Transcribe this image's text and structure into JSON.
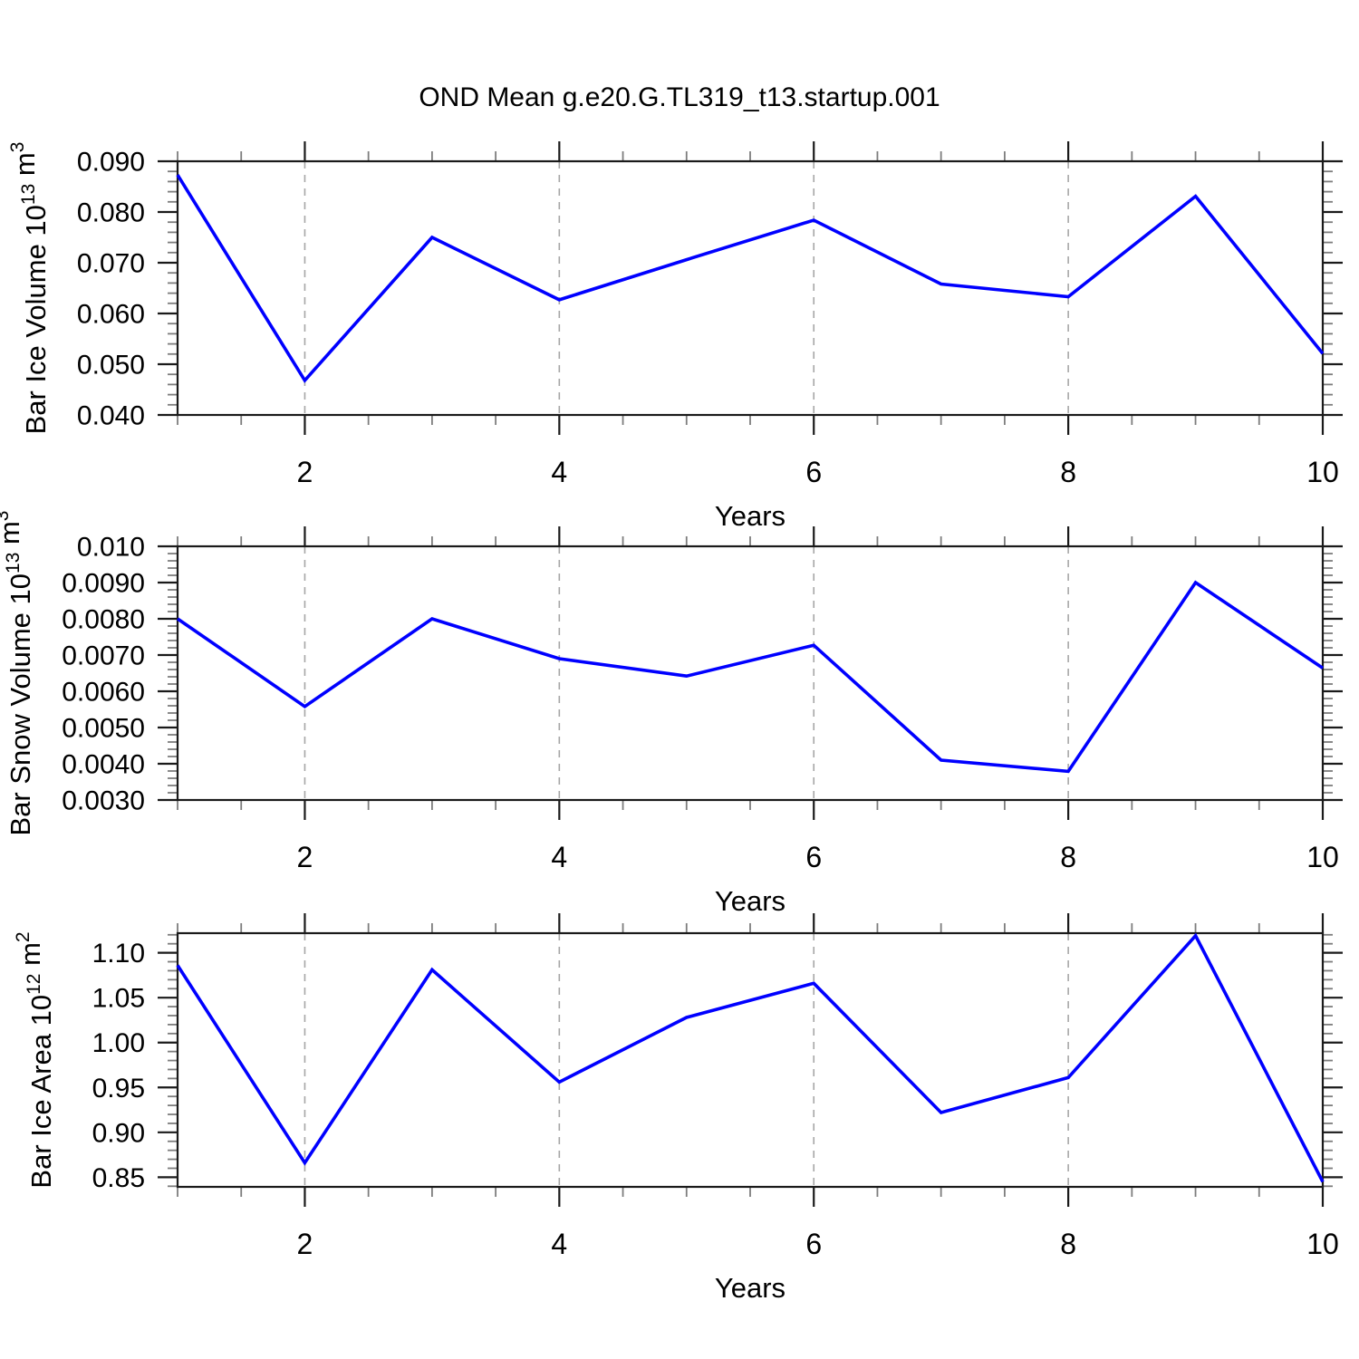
{
  "title": "OND Mean g.e20.G.TL319_t13.startup.001",
  "colors": {
    "line": "#0000ff",
    "frame": "#1a1a1a",
    "major_tick": "#1a1a1a",
    "minor_tick": "#7d7d7d",
    "grid": "#a6a6a6",
    "text": "#000000",
    "background": "#ffffff"
  },
  "x_axis": {
    "label": "Years",
    "min": 1,
    "max": 10,
    "major_ticks": [
      2,
      4,
      6,
      8,
      10
    ],
    "minor_step": 0.5,
    "gridline_years": [
      2,
      4,
      6,
      8
    ]
  },
  "chart_data": [
    {
      "type": "line",
      "name": "bar-ice-volume",
      "ylabel_parts": [
        {
          "text": "Bar Ice Volume 10",
          "sup": false
        },
        {
          "text": "13",
          "sup": true
        },
        {
          "text": " m",
          "sup": false
        },
        {
          "text": "3",
          "sup": true
        }
      ],
      "xlabel": "Years",
      "x": [
        1,
        2,
        3,
        4,
        5,
        6,
        7,
        8,
        9,
        10
      ],
      "values": [
        0.0873,
        0.0468,
        0.075,
        0.0627,
        0.0706,
        0.0784,
        0.0658,
        0.0633,
        0.0831,
        0.0521
      ],
      "ylim": [
        0.04,
        0.09
      ],
      "ymajor": [
        {
          "v": 0.09,
          "label": "0.090"
        },
        {
          "v": 0.08,
          "label": "0.080"
        },
        {
          "v": 0.07,
          "label": "0.070"
        },
        {
          "v": 0.06,
          "label": "0.060"
        },
        {
          "v": 0.05,
          "label": "0.050"
        },
        {
          "v": 0.04,
          "label": "0.040"
        }
      ],
      "yminor_step": 0.002,
      "grid": true
    },
    {
      "type": "line",
      "name": "bar-snow-volume",
      "ylabel_parts": [
        {
          "text": "Bar Snow Volume 10",
          "sup": false
        },
        {
          "text": "13",
          "sup": true
        },
        {
          "text": " m",
          "sup": false
        },
        {
          "text": "3",
          "sup": true
        }
      ],
      "xlabel": "Years",
      "x": [
        1,
        2,
        3,
        4,
        5,
        6,
        7,
        8,
        9,
        10
      ],
      "values": [
        0.008,
        0.00558,
        0.008,
        0.0069,
        0.00642,
        0.00727,
        0.0041,
        0.00379,
        0.009,
        0.00664
      ],
      "ylim": [
        0.003,
        0.01
      ],
      "ymajor": [
        {
          "v": 0.01,
          "label": "0.010"
        },
        {
          "v": 0.009,
          "label": "0.0090"
        },
        {
          "v": 0.008,
          "label": "0.0080"
        },
        {
          "v": 0.007,
          "label": "0.0070"
        },
        {
          "v": 0.006,
          "label": "0.0060"
        },
        {
          "v": 0.005,
          "label": "0.0050"
        },
        {
          "v": 0.004,
          "label": "0.0040"
        },
        {
          "v": 0.003,
          "label": "0.0030"
        }
      ],
      "yminor_step": 0.0002,
      "grid": true
    },
    {
      "type": "line",
      "name": "bar-ice-area",
      "ylabel_parts": [
        {
          "text": "Bar Ice Area 10",
          "sup": false
        },
        {
          "text": "12",
          "sup": true
        },
        {
          "text": " m",
          "sup": false
        },
        {
          "text": "2",
          "sup": true
        }
      ],
      "xlabel": "Years",
      "x": [
        1,
        2,
        3,
        4,
        5,
        6,
        7,
        8,
        9,
        10
      ],
      "values": [
        1.086,
        0.866,
        1.081,
        0.956,
        1.028,
        1.066,
        0.922,
        0.961,
        1.119,
        0.845
      ],
      "ylim": [
        0.8393,
        1.1218
      ],
      "ymajor": [
        {
          "v": 1.1,
          "label": "1.10"
        },
        {
          "v": 1.05,
          "label": "1.05"
        },
        {
          "v": 1.0,
          "label": "1.00"
        },
        {
          "v": 0.95,
          "label": "0.95"
        },
        {
          "v": 0.9,
          "label": "0.90"
        },
        {
          "v": 0.85,
          "label": "0.85"
        }
      ],
      "yminor_step": 0.01,
      "grid": true
    }
  ]
}
